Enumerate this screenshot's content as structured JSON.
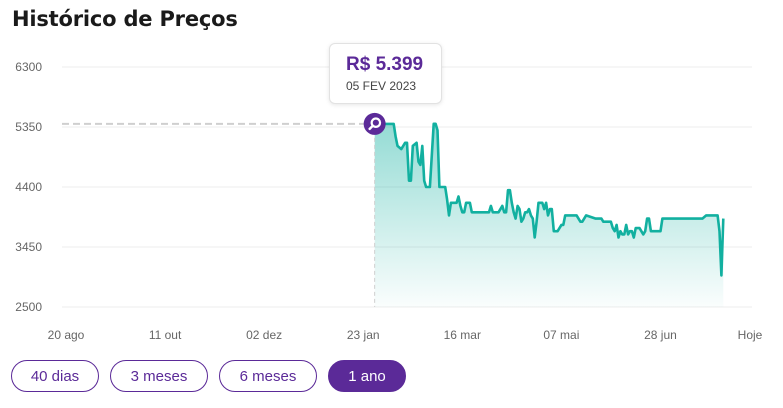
{
  "title": "Histórico de Preços",
  "tooltip": {
    "price": "R$ 5.399",
    "date": "05 FEV 2023"
  },
  "range_buttons": [
    {
      "label": "40 dias",
      "active": false
    },
    {
      "label": "3 meses",
      "active": false
    },
    {
      "label": "6 meses",
      "active": false
    },
    {
      "label": "1 ano",
      "active": true
    }
  ],
  "colors": {
    "line": "#12b0a0",
    "accent": "#5b2a98",
    "grid": "#ececec"
  },
  "chart_data": {
    "type": "line",
    "y_ticks": [
      2500,
      3450,
      4400,
      5350,
      6300
    ],
    "ylim": [
      2500,
      6300
    ],
    "x_ticks": [
      {
        "label": "20 ago",
        "day": 0
      },
      {
        "label": "11 out",
        "day": 52
      },
      {
        "label": "02 dez",
        "day": 104
      },
      {
        "label": "23 jan",
        "day": 156
      },
      {
        "label": "16 mar",
        "day": 208
      },
      {
        "label": "07 mai",
        "day": 260
      },
      {
        "label": "28 jun",
        "day": 312
      },
      {
        "label": "Hoje",
        "day": 359
      }
    ],
    "highlight": {
      "day": 162,
      "value": 5399
    },
    "series": [
      {
        "points": [
          [
            162,
            5399
          ],
          [
            172,
            5399
          ],
          [
            173,
            5200
          ],
          [
            174,
            5050
          ],
          [
            176,
            5000
          ],
          [
            178,
            5100
          ],
          [
            179,
            5100
          ],
          [
            180,
            4500
          ],
          [
            181,
            4500
          ],
          [
            182,
            5050
          ],
          [
            184,
            5100
          ],
          [
            185,
            4800
          ],
          [
            186,
            4750
          ],
          [
            187,
            5050
          ],
          [
            188,
            4500
          ],
          [
            189,
            4400
          ],
          [
            191,
            4400
          ],
          [
            193,
            5400
          ],
          [
            194,
            5400
          ],
          [
            195,
            5300
          ],
          [
            196,
            4400
          ],
          [
            199,
            4400
          ],
          [
            200,
            4200
          ],
          [
            201,
            3950
          ],
          [
            202,
            4150
          ],
          [
            205,
            4150
          ],
          [
            206,
            4250
          ],
          [
            207,
            4100
          ],
          [
            208,
            4000
          ],
          [
            209,
            4000
          ],
          [
            210,
            4150
          ],
          [
            211,
            4150
          ],
          [
            212,
            4150
          ],
          [
            213,
            4000
          ],
          [
            220,
            4000
          ],
          [
            222,
            4000
          ],
          [
            223,
            4100
          ],
          [
            224,
            4000
          ],
          [
            227,
            4000
          ],
          [
            229,
            4100
          ],
          [
            230,
            4000
          ],
          [
            231,
            4000
          ],
          [
            232,
            4350
          ],
          [
            233,
            4350
          ],
          [
            234,
            4150
          ],
          [
            235,
            4000
          ],
          [
            236,
            3900
          ],
          [
            237,
            4100
          ],
          [
            238,
            4050
          ],
          [
            239,
            3850
          ],
          [
            240,
            3900
          ],
          [
            241,
            4000
          ],
          [
            242,
            4000
          ],
          [
            243,
            4050
          ],
          [
            244,
            3950
          ],
          [
            245,
            3900
          ],
          [
            246,
            3600
          ],
          [
            247,
            3850
          ],
          [
            248,
            4150
          ],
          [
            250,
            4150
          ],
          [
            251,
            4050
          ],
          [
            252,
            4150
          ],
          [
            253,
            3950
          ],
          [
            254,
            4050
          ],
          [
            255,
            4050
          ],
          [
            256,
            3700
          ],
          [
            257,
            3700
          ],
          [
            258,
            3700
          ],
          [
            260,
            3800
          ],
          [
            261,
            3800
          ],
          [
            262,
            3950
          ],
          [
            268,
            3950
          ],
          [
            269,
            3900
          ],
          [
            270,
            3850
          ],
          [
            271,
            3850
          ],
          [
            272,
            3900
          ],
          [
            273,
            3950
          ],
          [
            278,
            3900
          ],
          [
            280,
            3900
          ],
          [
            281,
            3900
          ],
          [
            282,
            3850
          ],
          [
            286,
            3850
          ],
          [
            287,
            3750
          ],
          [
            288,
            3700
          ],
          [
            289,
            3800
          ],
          [
            290,
            3600
          ],
          [
            291,
            3700
          ],
          [
            292,
            3650
          ],
          [
            293,
            3650
          ],
          [
            294,
            3800
          ],
          [
            295,
            3650
          ],
          [
            296,
            3700
          ],
          [
            297,
            3700
          ],
          [
            298,
            3600
          ],
          [
            299,
            3750
          ],
          [
            301,
            3750
          ],
          [
            303,
            3650
          ],
          [
            304,
            3700
          ],
          [
            305,
            3900
          ],
          [
            306,
            3900
          ],
          [
            307,
            3700
          ],
          [
            308,
            3700
          ],
          [
            312,
            3700
          ],
          [
            313,
            3900
          ],
          [
            334,
            3900
          ],
          [
            336,
            3950
          ],
          [
            342,
            3950
          ],
          [
            343,
            3700
          ],
          [
            344,
            3000
          ],
          [
            345,
            3900
          ]
        ]
      }
    ]
  }
}
